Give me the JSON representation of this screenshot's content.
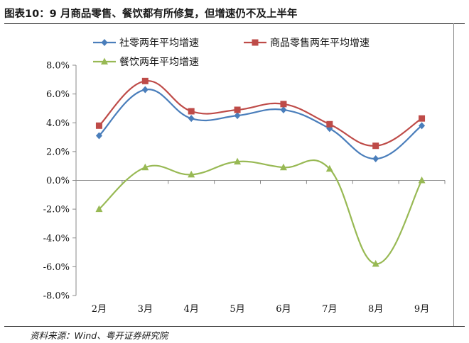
{
  "header": {
    "title": "图表10：9 月商品零售、餐饮都有所修复，但增速仍不及上半年"
  },
  "footer": {
    "source": "资料来源：Wind、粤开证券研究院"
  },
  "chart_data": {
    "type": "line",
    "categories": [
      "2月",
      "3月",
      "4月",
      "5月",
      "6月",
      "7月",
      "8月",
      "9月"
    ],
    "series": [
      {
        "name": "社零两年平均增速",
        "color": "#4a7ebb",
        "marker": "diamond",
        "values": [
          3.1,
          6.3,
          4.3,
          4.5,
          4.9,
          3.6,
          1.5,
          3.8
        ]
      },
      {
        "name": "商品零售两年平均增速",
        "color": "#be4b48",
        "marker": "square",
        "values": [
          3.8,
          6.9,
          4.8,
          4.9,
          5.3,
          3.9,
          2.4,
          4.3
        ]
      },
      {
        "name": "餐饮两年平均增速",
        "color": "#98b954",
        "marker": "triangle",
        "values": [
          -2.0,
          0.9,
          0.4,
          1.3,
          0.9,
          0.8,
          -5.8,
          0.0
        ]
      }
    ],
    "ylim": [
      -8,
      8
    ],
    "yticks": [
      8,
      6,
      4,
      2,
      0,
      -2,
      -4,
      -6,
      -8
    ],
    "ytick_labels": [
      "8.0%",
      "6.0%",
      "4.0%",
      "2.0%",
      "0.0%",
      "-2.0%",
      "-4.0%",
      "-6.0%",
      "-8.0%"
    ],
    "grid": false,
    "legend_position": "top"
  }
}
